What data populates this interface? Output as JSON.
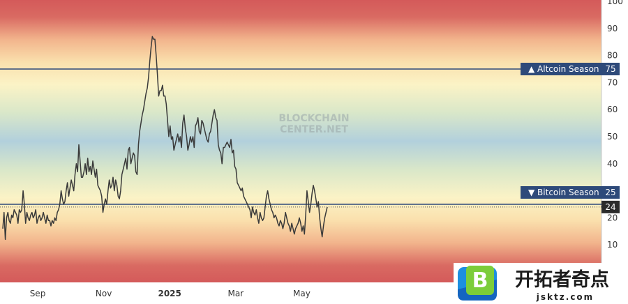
{
  "chart_data": {
    "type": "line",
    "title": "",
    "xlabel": "",
    "ylabel": "",
    "ylim": [
      0,
      100
    ],
    "y_ticks": [
      10,
      20,
      30,
      40,
      50,
      60,
      70,
      80,
      90,
      100
    ],
    "x_ticks": [
      {
        "label": "Sep",
        "month": 0
      },
      {
        "label": "Nov",
        "month": 2
      },
      {
        "label": "2025",
        "month": 4,
        "bold": true
      },
      {
        "label": "Mar",
        "month": 6
      },
      {
        "label": "May",
        "month": 8
      }
    ],
    "thresholds": [
      {
        "name": "Altcoin Season",
        "value": 75,
        "symbol": "▲"
      },
      {
        "name": "Bitcoin Season",
        "value": 25,
        "symbol": "▼"
      }
    ],
    "current_value": 24,
    "series": [
      {
        "values": [
          16,
          22,
          12,
          20,
          22,
          19,
          18,
          21,
          20,
          23,
          22,
          21,
          18,
          23,
          22,
          23,
          30,
          25,
          18,
          22,
          20,
          19,
          21,
          22,
          20,
          21,
          23,
          18,
          20,
          21,
          19,
          20,
          22,
          20,
          18,
          21,
          19,
          19,
          17,
          19,
          18,
          20,
          19,
          22,
          23,
          25,
          30,
          27,
          25,
          26,
          30,
          33,
          28,
          31,
          34,
          32,
          30,
          36,
          40,
          37,
          47,
          41,
          35,
          35,
          37,
          40,
          36,
          42,
          37,
          39,
          36,
          41,
          38,
          35,
          38,
          32,
          31,
          30,
          28,
          22,
          25,
          27,
          25,
          30,
          34,
          31,
          32,
          35,
          30,
          34,
          32,
          28,
          27,
          30,
          36,
          38,
          40,
          42,
          38,
          45,
          46,
          40,
          42,
          44,
          43,
          37,
          36,
          47,
          52,
          55,
          58,
          60,
          63,
          66,
          68,
          72,
          78,
          83,
          87,
          86,
          86,
          80,
          73,
          65,
          67,
          67,
          69,
          65,
          65,
          62,
          56,
          50,
          54,
          49,
          50,
          45,
          47,
          49,
          51,
          48,
          50,
          46,
          55,
          58,
          53,
          50,
          45,
          47,
          50,
          48,
          50,
          46,
          54,
          55,
          57,
          52,
          51,
          56,
          55,
          53,
          51,
          49,
          48,
          51,
          52,
          55,
          58,
          60,
          57,
          56,
          47,
          45,
          44,
          40,
          46,
          46,
          47,
          48,
          47,
          46,
          49,
          44,
          45,
          39,
          38,
          33,
          32,
          31,
          30,
          31,
          28,
          27,
          26,
          25,
          24,
          23,
          20,
          24,
          22,
          21,
          23,
          20,
          18,
          22,
          20,
          19,
          20,
          24,
          28,
          30,
          27,
          25,
          23,
          22,
          20,
          21,
          20,
          18,
          17,
          19,
          18,
          16,
          18,
          22,
          20,
          18,
          17,
          15,
          18,
          16,
          14,
          16,
          17,
          18,
          20,
          18,
          15,
          17,
          14,
          21,
          30,
          26,
          22,
          25,
          29,
          32,
          30,
          27,
          24,
          26,
          20,
          16,
          13,
          17,
          20,
          22,
          24
        ]
      }
    ]
  },
  "axis": {
    "y_labels": [
      "10",
      "20",
      "30",
      "40",
      "50",
      "60",
      "70",
      "80",
      "90",
      "100"
    ]
  },
  "labels": {
    "altcoin": {
      "text": "▲ Altcoin Season",
      "value": "75"
    },
    "bitcoin": {
      "text": "▼ Bitcoin Season",
      "value": "25"
    },
    "current": "24"
  },
  "watermark": {
    "line1": "BLOCKCHAIN",
    "line2": "CENTER.NET"
  },
  "logo": {
    "letter": "B",
    "title": "开拓者奇点",
    "domain": "jsktz.com"
  },
  "colors": {
    "line": "#3a3a3a",
    "threshold": "#2e4a7a",
    "label_bg": "#2e4a7a",
    "current_bg": "#2b2b2b",
    "red": "#d45a5a",
    "yellow": "#fbf3c6",
    "blue": "#b2d0dc"
  }
}
